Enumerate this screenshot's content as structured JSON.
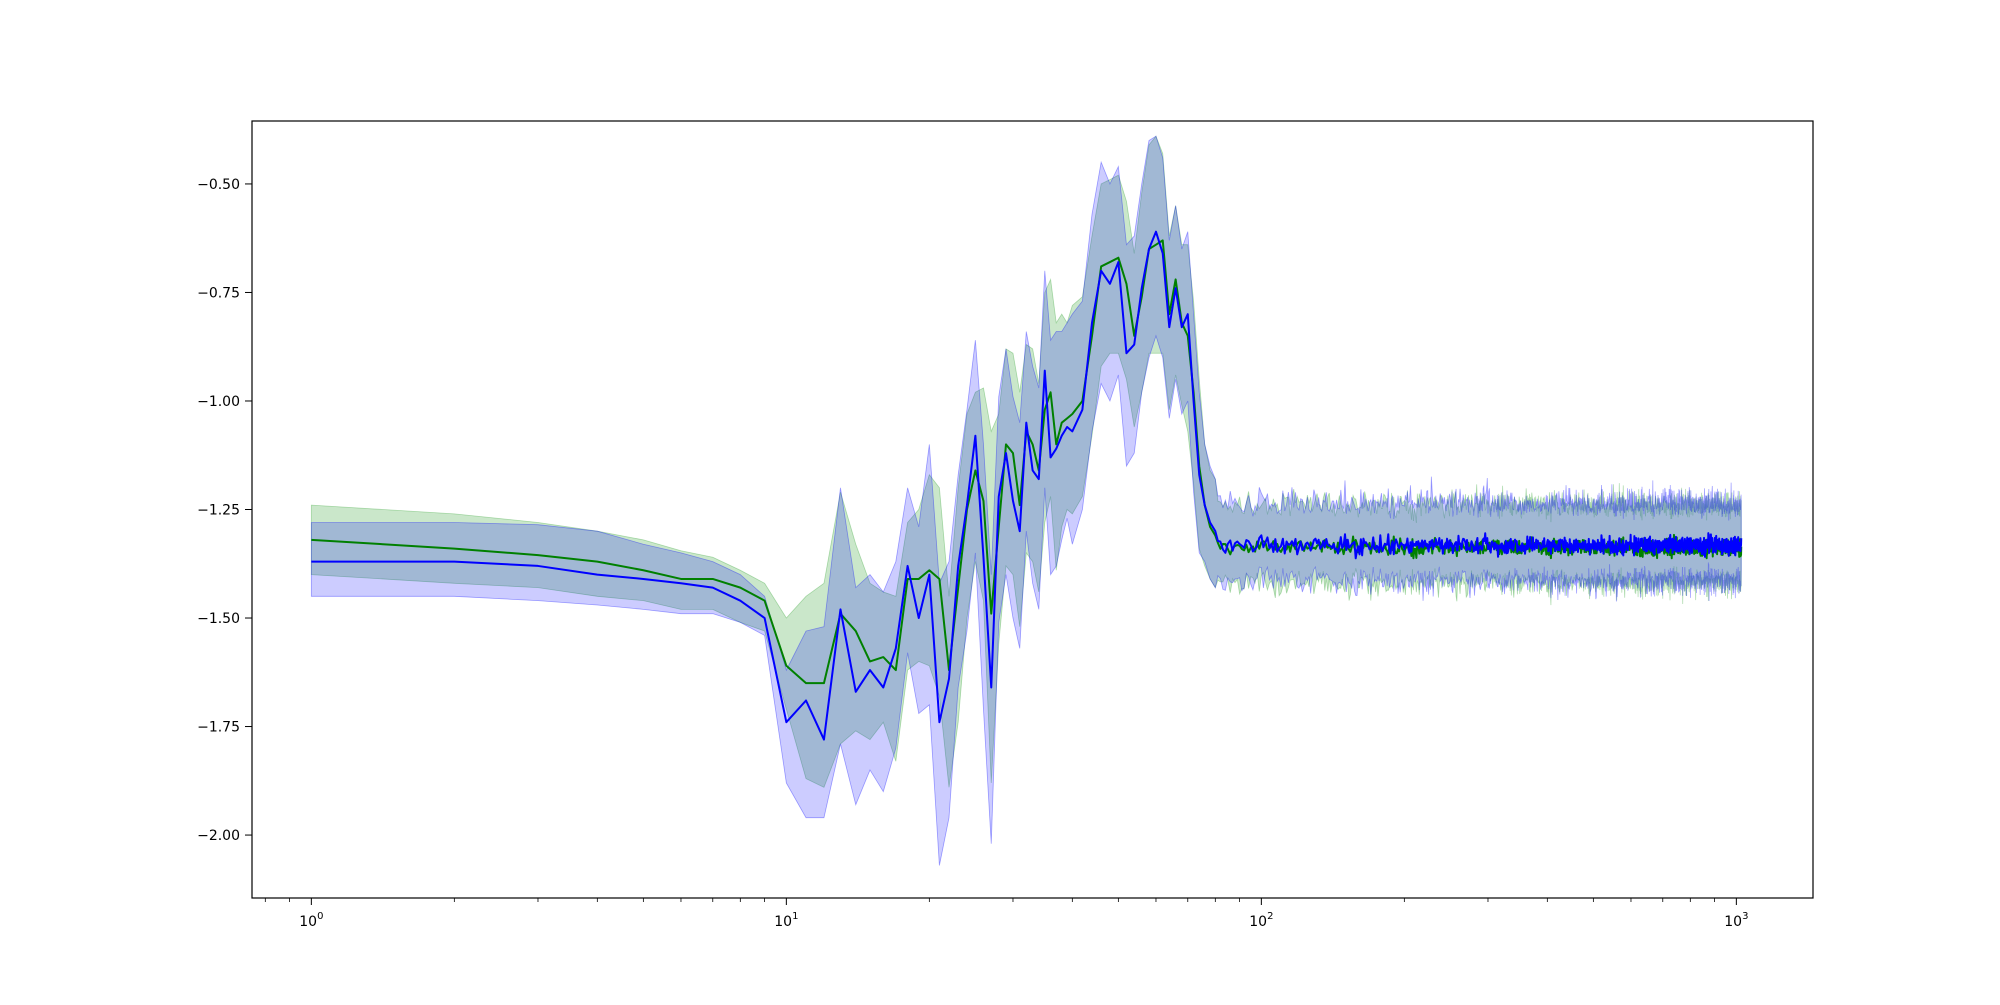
{
  "chart_data": {
    "type": "line",
    "title": "",
    "xlabel": "",
    "ylabel": "",
    "x_scale": "log",
    "xlim": [
      0.75,
      1450
    ],
    "ylim": [
      -2.145,
      -0.355
    ],
    "x_ticks": [
      {
        "value": 1,
        "base": "10",
        "exp": "0"
      },
      {
        "value": 10,
        "base": "10",
        "exp": "1"
      },
      {
        "value": 100,
        "base": "10",
        "exp": "2"
      },
      {
        "value": 1000,
        "base": "10",
        "exp": "3"
      }
    ],
    "y_ticks": [
      {
        "value": -0.5,
        "label": "−0.50"
      },
      {
        "value": -0.75,
        "label": "−0.75"
      },
      {
        "value": -1.0,
        "label": "−1.00"
      },
      {
        "value": -1.25,
        "label": "−1.25"
      },
      {
        "value": -1.5,
        "label": "−1.50"
      },
      {
        "value": -1.75,
        "label": "−1.75"
      },
      {
        "value": -2.0,
        "label": "−2.00"
      }
    ],
    "grid": false,
    "legend": "none",
    "noise_tail_from": 80,
    "noise_tail_to": 1024,
    "series": [
      {
        "color": "#008000",
        "band_color": "#2ca02c",
        "band_opacity": 0.25,
        "points": [
          [
            1,
            -1.32,
            -1.24,
            -1.4
          ],
          [
            2,
            -1.34,
            -1.26,
            -1.42
          ],
          [
            3,
            -1.355,
            -1.28,
            -1.43
          ],
          [
            4,
            -1.37,
            -1.3,
            -1.45
          ],
          [
            5,
            -1.39,
            -1.32,
            -1.46
          ],
          [
            6,
            -1.41,
            -1.345,
            -1.48
          ],
          [
            7,
            -1.41,
            -1.36,
            -1.48
          ],
          [
            8,
            -1.43,
            -1.39,
            -1.51
          ],
          [
            9,
            -1.46,
            -1.42,
            -1.53
          ],
          [
            10,
            -1.61,
            -1.5,
            -1.71
          ],
          [
            11,
            -1.65,
            -1.45,
            -1.87
          ],
          [
            12,
            -1.65,
            -1.42,
            -1.89
          ],
          [
            13,
            -1.49,
            -1.21,
            -1.79
          ],
          [
            14,
            -1.53,
            -1.33,
            -1.76
          ],
          [
            15,
            -1.6,
            -1.42,
            -1.78
          ],
          [
            16,
            -1.59,
            -1.44,
            -1.74
          ],
          [
            17,
            -1.62,
            -1.45,
            -1.83
          ],
          [
            18,
            -1.41,
            -1.28,
            -1.62
          ],
          [
            19,
            -1.41,
            -1.25,
            -1.6
          ],
          [
            20,
            -1.39,
            -1.17,
            -1.61
          ],
          [
            21,
            -1.41,
            -1.2,
            -1.68
          ],
          [
            22,
            -1.62,
            -1.45,
            -1.89
          ],
          [
            23,
            -1.43,
            -1.2,
            -1.74
          ],
          [
            24,
            -1.25,
            -1.03,
            -1.5
          ],
          [
            25,
            -1.16,
            -0.98,
            -1.37
          ],
          [
            26,
            -1.23,
            -0.97,
            -1.46
          ],
          [
            27,
            -1.49,
            -1.07,
            -1.88
          ],
          [
            28,
            -1.29,
            -1.03,
            -1.56
          ],
          [
            29,
            -1.1,
            -0.88,
            -1.38
          ],
          [
            30,
            -1.12,
            -0.89,
            -1.4
          ],
          [
            31,
            -1.24,
            -0.98,
            -1.52
          ],
          [
            32,
            -1.07,
            -0.87,
            -1.35
          ],
          [
            33,
            -1.1,
            -0.88,
            -1.37
          ],
          [
            34,
            -1.16,
            -0.96,
            -1.44
          ],
          [
            35,
            -1.02,
            -0.75,
            -1.28
          ],
          [
            36,
            -0.98,
            -0.72,
            -1.22
          ],
          [
            37,
            -1.1,
            -0.82,
            -1.39
          ],
          [
            38,
            -1.05,
            -0.8,
            -1.29
          ],
          [
            39,
            -1.04,
            -0.82,
            -1.25
          ],
          [
            40,
            -1.03,
            -0.78,
            -1.26
          ],
          [
            42,
            -1.0,
            -0.76,
            -1.22
          ],
          [
            44,
            -0.85,
            -0.62,
            -1.08
          ],
          [
            46,
            -0.69,
            -0.5,
            -0.92
          ],
          [
            48,
            -0.68,
            -0.49,
            -0.89
          ],
          [
            50,
            -0.67,
            -0.48,
            -0.89
          ],
          [
            52,
            -0.73,
            -0.54,
            -0.95
          ],
          [
            54,
            -0.85,
            -0.66,
            -1.06
          ],
          [
            56,
            -0.76,
            -0.52,
            -0.98
          ],
          [
            58,
            -0.65,
            -0.41,
            -0.89
          ],
          [
            60,
            -0.64,
            -0.39,
            -0.89
          ],
          [
            62,
            -0.63,
            -0.43,
            -0.89
          ],
          [
            64,
            -0.8,
            -0.62,
            -1.02
          ],
          [
            66,
            -0.72,
            -0.55,
            -0.94
          ],
          [
            68,
            -0.82,
            -0.64,
            -1.01
          ],
          [
            70,
            -0.85,
            -0.64,
            -1.07
          ],
          [
            72,
            -0.98,
            -0.77,
            -1.19
          ],
          [
            74,
            -1.15,
            -0.95,
            -1.34
          ],
          [
            76,
            -1.24,
            -1.1,
            -1.38
          ],
          [
            78,
            -1.29,
            -1.16,
            -1.41
          ],
          [
            80,
            -1.31,
            -1.18,
            -1.43
          ]
        ]
      },
      {
        "color": "#0000ff",
        "band_color": "#0000ff",
        "band_opacity": 0.2,
        "points": [
          [
            1,
            -1.37,
            -1.28,
            -1.45
          ],
          [
            2,
            -1.37,
            -1.28,
            -1.45
          ],
          [
            3,
            -1.38,
            -1.285,
            -1.46
          ],
          [
            4,
            -1.4,
            -1.3,
            -1.47
          ],
          [
            5,
            -1.41,
            -1.33,
            -1.48
          ],
          [
            6,
            -1.42,
            -1.35,
            -1.49
          ],
          [
            7,
            -1.43,
            -1.37,
            -1.49
          ],
          [
            8,
            -1.46,
            -1.4,
            -1.51
          ],
          [
            9,
            -1.5,
            -1.45,
            -1.54
          ],
          [
            10,
            -1.74,
            -1.62,
            -1.88
          ],
          [
            11,
            -1.69,
            -1.53,
            -1.96
          ],
          [
            12,
            -1.78,
            -1.52,
            -1.96
          ],
          [
            13,
            -1.48,
            -1.2,
            -1.79
          ],
          [
            14,
            -1.67,
            -1.43,
            -1.93
          ],
          [
            15,
            -1.62,
            -1.4,
            -1.85
          ],
          [
            16,
            -1.66,
            -1.44,
            -1.9
          ],
          [
            17,
            -1.57,
            -1.37,
            -1.8
          ],
          [
            18,
            -1.38,
            -1.2,
            -1.58
          ],
          [
            19,
            -1.5,
            -1.29,
            -1.72
          ],
          [
            20,
            -1.4,
            -1.1,
            -1.7
          ],
          [
            21,
            -1.74,
            -1.42,
            -2.07
          ],
          [
            22,
            -1.64,
            -1.37,
            -1.96
          ],
          [
            23,
            -1.38,
            -1.17,
            -1.66
          ],
          [
            24,
            -1.24,
            -1.02,
            -1.53
          ],
          [
            25,
            -1.08,
            -0.86,
            -1.35
          ],
          [
            26,
            -1.36,
            -1.1,
            -1.71
          ],
          [
            27,
            -1.66,
            -1.4,
            -2.02
          ],
          [
            28,
            -1.22,
            -0.99,
            -1.51
          ],
          [
            29,
            -1.12,
            -0.88,
            -1.4
          ],
          [
            30,
            -1.23,
            -0.99,
            -1.5
          ],
          [
            31,
            -1.3,
            -1.05,
            -1.57
          ],
          [
            32,
            -1.05,
            -0.84,
            -1.3
          ],
          [
            33,
            -1.16,
            -0.92,
            -1.42
          ],
          [
            34,
            -1.18,
            -0.97,
            -1.48
          ],
          [
            35,
            -0.93,
            -0.7,
            -1.2
          ],
          [
            36,
            -1.13,
            -0.86,
            -1.4
          ],
          [
            37,
            -1.11,
            -0.84,
            -1.38
          ],
          [
            38,
            -1.08,
            -0.84,
            -1.32
          ],
          [
            39,
            -1.06,
            -0.82,
            -1.27
          ],
          [
            40,
            -1.07,
            -0.8,
            -1.33
          ],
          [
            42,
            -1.02,
            -0.77,
            -1.25
          ],
          [
            44,
            -0.82,
            -0.57,
            -1.07
          ],
          [
            46,
            -0.7,
            -0.45,
            -0.96
          ],
          [
            48,
            -0.73,
            -0.5,
            -1.0
          ],
          [
            50,
            -0.68,
            -0.46,
            -0.94
          ],
          [
            52,
            -0.89,
            -0.64,
            -1.15
          ],
          [
            54,
            -0.87,
            -0.62,
            -1.12
          ],
          [
            56,
            -0.74,
            -0.5,
            -0.98
          ],
          [
            58,
            -0.65,
            -0.4,
            -0.9
          ],
          [
            60,
            -0.61,
            -0.39,
            -0.85
          ],
          [
            62,
            -0.66,
            -0.44,
            -0.9
          ],
          [
            64,
            -0.83,
            -0.63,
            -1.04
          ],
          [
            66,
            -0.74,
            -0.55,
            -0.95
          ],
          [
            68,
            -0.83,
            -0.65,
            -1.03
          ],
          [
            70,
            -0.8,
            -0.61,
            -1.0
          ],
          [
            72,
            -1.0,
            -0.8,
            -1.21
          ],
          [
            74,
            -1.17,
            -0.98,
            -1.35
          ],
          [
            76,
            -1.24,
            -1.1,
            -1.37
          ],
          [
            78,
            -1.28,
            -1.15,
            -1.41
          ],
          [
            80,
            -1.3,
            -1.18,
            -1.43
          ]
        ]
      }
    ]
  }
}
